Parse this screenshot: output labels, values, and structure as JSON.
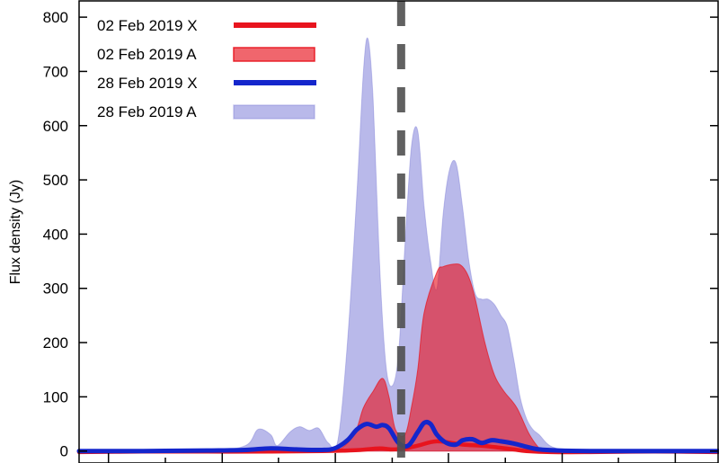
{
  "chart_data": {
    "type": "area",
    "ylabel": "Flux density (Jy)",
    "xlabel": "",
    "ylim": [
      -22,
      830
    ],
    "xlim": [
      0,
      100
    ],
    "y_ticks": [
      0,
      100,
      200,
      300,
      400,
      500,
      600,
      700,
      800
    ],
    "y_tick_labels": [
      "0",
      "100",
      "200",
      "300",
      "400",
      "500",
      "600",
      "700",
      "800"
    ],
    "x_ticks_major": [
      4.6,
      22.4,
      40.1,
      57.8,
      75.6,
      93.3
    ],
    "x_ticks_minor": [
      13.5,
      31.2,
      49.0,
      66.7,
      84.4
    ],
    "x_tick_labels": [],
    "vline_x": 50.4,
    "legend_position": "top-left",
    "grid": false,
    "series": [
      {
        "name": "02 Feb 2019 X",
        "kind": "line",
        "color": "#e8141e",
        "x": [
          0,
          10,
          20,
          30,
          38,
          42,
          44,
          47,
          49,
          51,
          53,
          56,
          60,
          63,
          66,
          68,
          70,
          74,
          80,
          90,
          100
        ],
        "y": [
          -2,
          -1,
          -1,
          -1,
          0,
          1,
          2,
          5,
          3,
          5,
          10,
          18,
          12,
          10,
          6,
          3,
          0,
          -2,
          -2,
          -1,
          -2
        ]
      },
      {
        "name": "02 Feb 2019 A",
        "kind": "area",
        "color": "#e8141e",
        "x": [
          0,
          20,
          34,
          40,
          43,
          44.5,
          46,
          47.5,
          48.5,
          49.5,
          51,
          52,
          53,
          54,
          56,
          57,
          59,
          60,
          61,
          62,
          63.5,
          65,
          66.5,
          68.5,
          70.5,
          72.5,
          74,
          76,
          80,
          88,
          100
        ],
        "y": [
          -2,
          -2,
          -1,
          0,
          30,
          80,
          110,
          134,
          100,
          40,
          30,
          80,
          150,
          255,
          330,
          340,
          345,
          340,
          320,
          280,
          200,
          140,
          110,
          80,
          30,
          0,
          -2,
          -2,
          -2,
          -2,
          -2
        ]
      },
      {
        "name": "28 Feb 2019 X",
        "kind": "line",
        "color": "#1426cc",
        "x": [
          0,
          10,
          20,
          26,
          30,
          34,
          38,
          40,
          42,
          43.5,
          45,
          46.5,
          47.5,
          48.5,
          50,
          51.5,
          53,
          54,
          55,
          56,
          57.5,
          59,
          60,
          61.5,
          63,
          64.5,
          66,
          68,
          70,
          72,
          75,
          80,
          90,
          100
        ],
        "y": [
          0,
          0,
          1,
          2,
          5,
          3,
          2,
          5,
          20,
          40,
          50,
          45,
          48,
          42,
          15,
          10,
          35,
          52,
          50,
          30,
          15,
          12,
          20,
          22,
          15,
          20,
          18,
          14,
          8,
          3,
          1,
          0,
          0,
          0
        ]
      },
      {
        "name": "28 Feb 2019 A",
        "kind": "area",
        "color": "#8080d8",
        "x": [
          0,
          20,
          26,
          28,
          30,
          31,
          33,
          34.5,
          36,
          37.5,
          39,
          40.5,
          42,
          43.5,
          44.5,
          45.2,
          46,
          47,
          48,
          49,
          50,
          51,
          52,
          53,
          54,
          55,
          56,
          57,
          58,
          59,
          60,
          61,
          62,
          63,
          64,
          65,
          66,
          67,
          68,
          69,
          70,
          71,
          72,
          74,
          78,
          88,
          100
        ],
        "y": [
          0,
          2,
          10,
          40,
          30,
          10,
          35,
          45,
          38,
          42,
          15,
          20,
          200,
          480,
          700,
          760,
          650,
          350,
          160,
          120,
          180,
          380,
          560,
          590,
          450,
          350,
          300,
          440,
          520,
          530,
          450,
          350,
          290,
          280,
          280,
          270,
          250,
          230,
          170,
          100,
          60,
          40,
          30,
          8,
          0,
          0,
          0
        ]
      }
    ]
  }
}
